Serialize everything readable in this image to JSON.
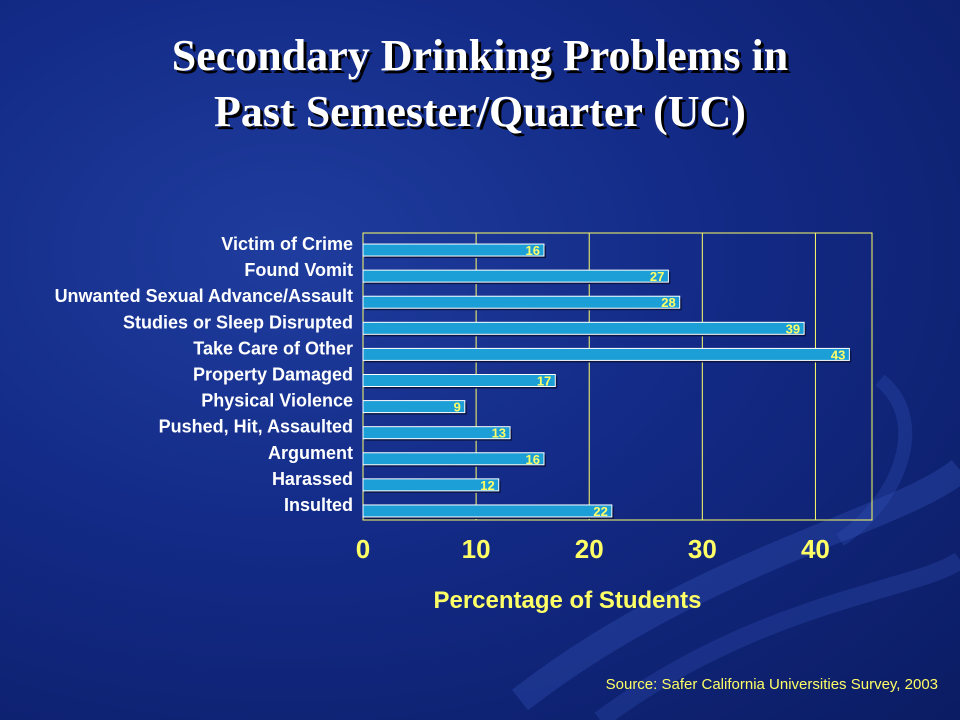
{
  "slide": {
    "title_line1": "Secondary Drinking Problems in",
    "title_line2": "Past Semester/Quarter (UC)",
    "source": "Source: Safer California Universities Survey, 2003"
  },
  "colors": {
    "background": "#132a86",
    "bar_fill": "#1b9fd6",
    "bar_outline": "#ffffff",
    "axis_and_grid": "#ffff66",
    "value_label": "#ffff66",
    "category_label": "#ffffff",
    "tick_label": "#ffff66"
  },
  "chart_data": {
    "type": "bar",
    "orientation": "horizontal",
    "categories": [
      "Victim of Crime",
      "Found Vomit",
      "Unwanted Sexual Advance/Assault",
      "Studies or Sleep Disrupted",
      "Take Care of Other",
      "Property Damaged",
      "Physical Violence",
      "Pushed, Hit, Assaulted",
      "Argument",
      "Harassed",
      "Insulted"
    ],
    "values": [
      16,
      27,
      28,
      39,
      43,
      17,
      9,
      13,
      16,
      12,
      22
    ],
    "value_labels": [
      "16",
      "27",
      "28",
      "39",
      "43",
      "17",
      "9",
      "13",
      "16",
      "12",
      "22"
    ],
    "xlabel": "Percentage of Students",
    "ylabel": "",
    "xlim": [
      0,
      45
    ],
    "xticks": [
      0,
      10,
      20,
      30,
      40
    ],
    "xtick_labels": [
      "0",
      "10",
      "20",
      "30",
      "40"
    ],
    "grid": "vertical"
  }
}
